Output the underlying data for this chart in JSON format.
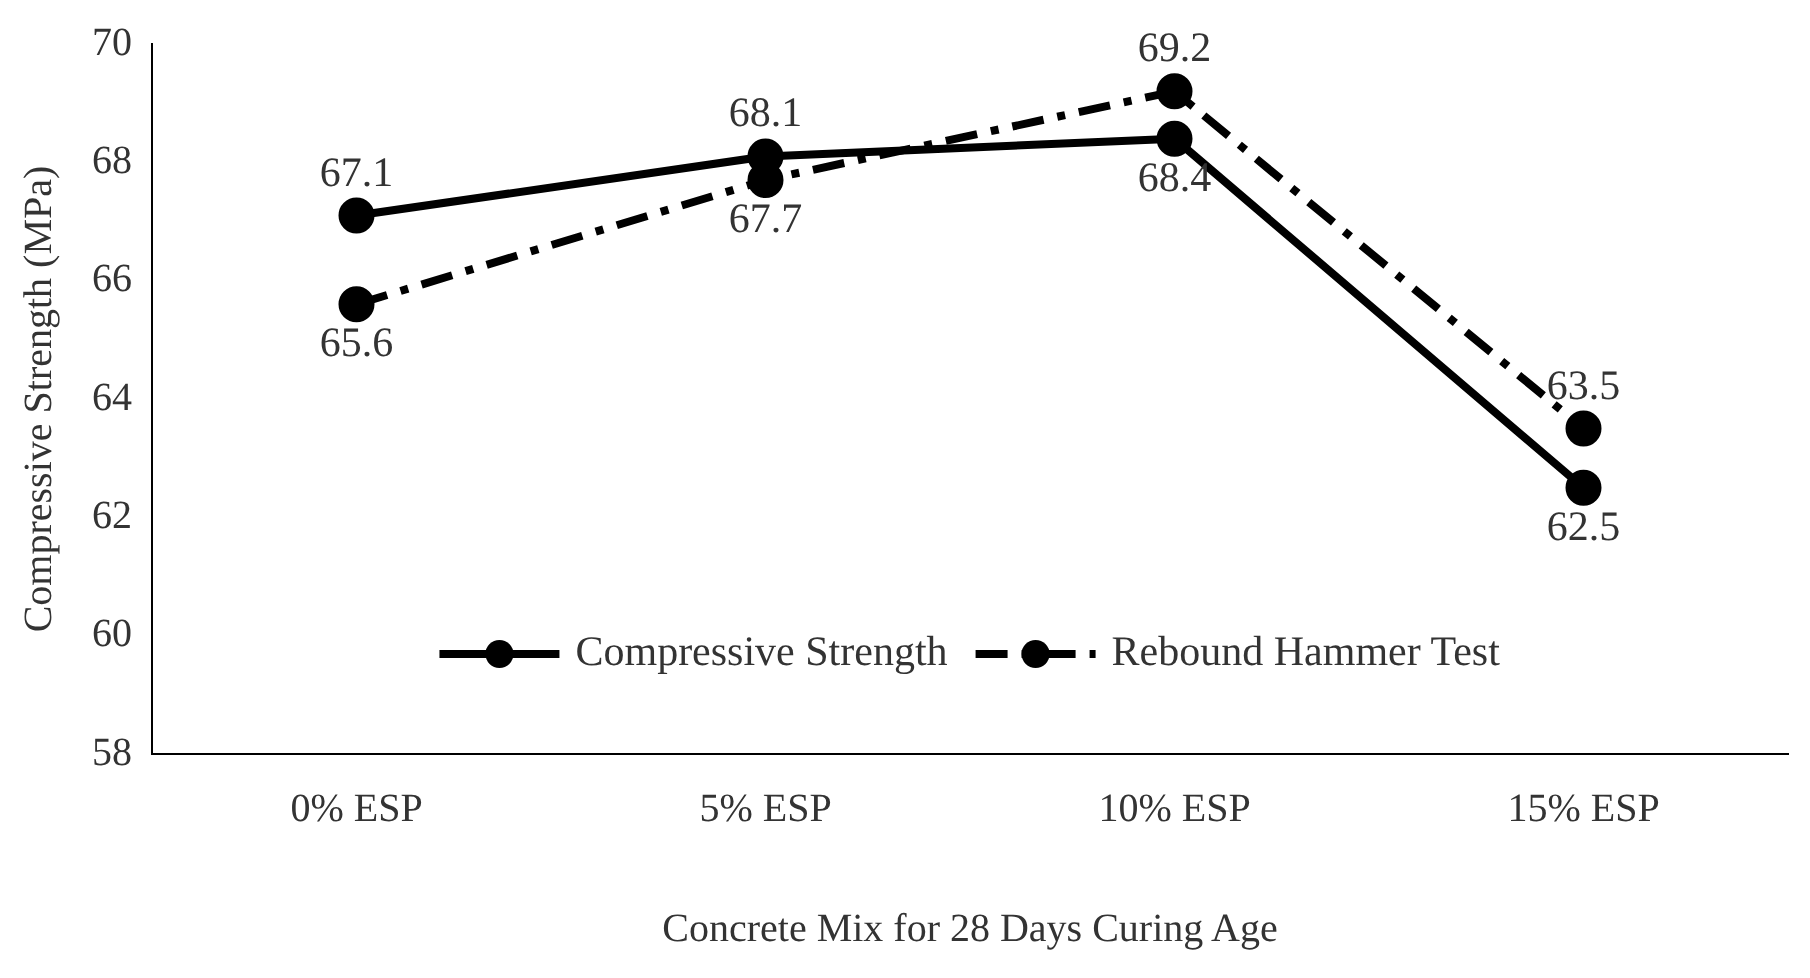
{
  "chart_data": {
    "type": "line",
    "xlabel": "Concrete Mix for 28 Days Curing Age",
    "ylabel": "Compressive Strength (MPa)",
    "categories": [
      "0% ESP",
      "5% ESP",
      "10% ESP",
      "15% ESP"
    ],
    "series": [
      {
        "name": "Compressive Strength",
        "color": "#000000",
        "values": [
          67.1,
          68.1,
          68.4,
          62.5
        ],
        "line_style": "solid"
      },
      {
        "name": "Rebound Hammer Test",
        "color": "#000000",
        "values": [
          65.6,
          67.7,
          69.2,
          63.5
        ],
        "line_style": "dashed"
      }
    ],
    "ylim": [
      58,
      70
    ],
    "yticks": [
      58,
      60,
      62,
      64,
      66,
      68,
      70
    ],
    "grid": false,
    "legend": "bottom",
    "marker": "circle",
    "data_labels": true
  }
}
